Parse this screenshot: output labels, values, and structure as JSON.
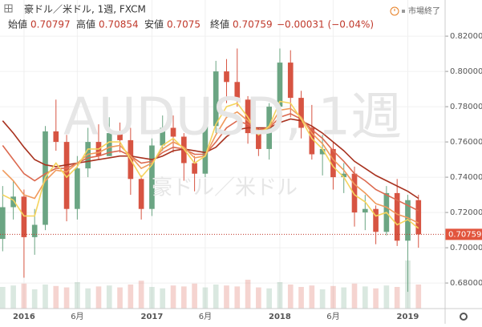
{
  "header": {
    "symbol": "豪ドル／米ドル, 1週, FXCM",
    "open_label": "始値",
    "open": 0.70797,
    "high_label": "高値",
    "high": 0.70854,
    "low_label": "安値",
    "low": 0.7075,
    "close_label": "終値",
    "close": 0.70759,
    "change": "−0.00031 (−0.04%)",
    "market_status": "市場終了"
  },
  "chart_data": {
    "type": "candlestick",
    "watermark": "AUDUSD, 1週",
    "watermark_sub": "豪ドル／米ドル",
    "xlim": [
      -0.25,
      41.5
    ],
    "xticks": [
      {
        "value": 2,
        "label": "2016"
      },
      {
        "value": 7,
        "label": "6月"
      },
      {
        "value": 14,
        "label": "2017"
      },
      {
        "value": 19,
        "label": "6月"
      },
      {
        "value": 26,
        "label": "2018"
      },
      {
        "value": 31,
        "label": "6月"
      },
      {
        "value": 38,
        "label": "2019"
      }
    ],
    "ylim": [
      0.6655,
      0.8405
    ],
    "yticks": [
      {
        "value": 0.68,
        "label": "0.68000"
      },
      {
        "value": 0.7,
        "label": "0.70000"
      },
      {
        "value": 0.72,
        "label": "0.72000"
      },
      {
        "value": 0.74,
        "label": "0.74000"
      },
      {
        "value": 0.76,
        "label": "0.76000"
      },
      {
        "value": 0.78,
        "label": "0.78000"
      },
      {
        "value": 0.8,
        "label": "0.80000"
      },
      {
        "value": 0.82,
        "label": "0.82000"
      }
    ],
    "up_color": "#6ba583",
    "down_color": "#d75442",
    "candles": [
      [
        0.705,
        0.735,
        0.698,
        0.723
      ],
      [
        0.723,
        0.738,
        0.716,
        0.729
      ],
      [
        0.729,
        0.733,
        0.683,
        0.706
      ],
      [
        0.706,
        0.722,
        0.696,
        0.713
      ],
      [
        0.713,
        0.769,
        0.71,
        0.766
      ],
      [
        0.766,
        0.784,
        0.755,
        0.76
      ],
      [
        0.76,
        0.764,
        0.715,
        0.722
      ],
      [
        0.722,
        0.752,
        0.716,
        0.745
      ],
      [
        0.745,
        0.768,
        0.74,
        0.76
      ],
      [
        0.76,
        0.77,
        0.75,
        0.752
      ],
      [
        0.752,
        0.774,
        0.752,
        0.765
      ],
      [
        0.765,
        0.771,
        0.754,
        0.761
      ],
      [
        0.761,
        0.768,
        0.73,
        0.739
      ],
      [
        0.739,
        0.741,
        0.716,
        0.722
      ],
      [
        0.722,
        0.762,
        0.718,
        0.758
      ],
      [
        0.758,
        0.775,
        0.755,
        0.768
      ],
      [
        0.768,
        0.775,
        0.754,
        0.763
      ],
      [
        0.763,
        0.765,
        0.738,
        0.748
      ],
      [
        0.748,
        0.752,
        0.732,
        0.742
      ],
      [
        0.742,
        0.77,
        0.74,
        0.769
      ],
      [
        0.769,
        0.806,
        0.765,
        0.8
      ],
      [
        0.8,
        0.807,
        0.782,
        0.794
      ],
      [
        0.794,
        0.813,
        0.78,
        0.784
      ],
      [
        0.784,
        0.786,
        0.759,
        0.765
      ],
      [
        0.765,
        0.768,
        0.752,
        0.756
      ],
      [
        0.756,
        0.782,
        0.75,
        0.78
      ],
      [
        0.78,
        0.813,
        0.779,
        0.805
      ],
      [
        0.805,
        0.812,
        0.774,
        0.785
      ],
      [
        0.785,
        0.789,
        0.762,
        0.768
      ],
      [
        0.768,
        0.781,
        0.75,
        0.753
      ],
      [
        0.753,
        0.764,
        0.741,
        0.756
      ],
      [
        0.756,
        0.76,
        0.733,
        0.74
      ],
      [
        0.74,
        0.748,
        0.731,
        0.742
      ],
      [
        0.742,
        0.746,
        0.712,
        0.72
      ],
      [
        0.72,
        0.73,
        0.71,
        0.722
      ],
      [
        0.722,
        0.724,
        0.702,
        0.709
      ],
      [
        0.709,
        0.735,
        0.707,
        0.731
      ],
      [
        0.731,
        0.739,
        0.701,
        0.704
      ],
      [
        0.704,
        0.73,
        0.675,
        0.727
      ],
      [
        0.727,
        0.73,
        0.7,
        0.7076
      ]
    ],
    "volume": [
      45,
      48,
      52,
      40,
      50,
      47,
      44,
      55,
      42,
      46,
      48,
      44,
      50,
      58,
      45,
      42,
      48,
      46,
      52,
      44,
      50,
      48,
      46,
      60,
      44,
      42,
      55,
      50,
      45,
      48,
      40,
      47,
      44,
      52,
      46,
      42,
      48,
      45,
      100,
      50
    ],
    "vlim": [
      0,
      100
    ],
    "series": [
      {
        "color": "#a8321f",
        "values": [
          0.772,
          0.765,
          0.757,
          0.75,
          0.747,
          0.746,
          0.747,
          0.748,
          0.749,
          0.75,
          0.751,
          0.752,
          0.752,
          0.751,
          0.75,
          0.752,
          0.755,
          0.756,
          0.755,
          0.754,
          0.757,
          0.763,
          0.767,
          0.768,
          0.768,
          0.768,
          0.771,
          0.773,
          0.772,
          0.769,
          0.765,
          0.76,
          0.755,
          0.749,
          0.745,
          0.741,
          0.738,
          0.735,
          0.732,
          0.728
        ]
      },
      {
        "color": "#dc6a50",
        "values": [
          0.758,
          0.75,
          0.742,
          0.738,
          0.742,
          0.745,
          0.745,
          0.748,
          0.751,
          0.752,
          0.754,
          0.755,
          0.752,
          0.748,
          0.749,
          0.754,
          0.757,
          0.756,
          0.753,
          0.753,
          0.76,
          0.768,
          0.772,
          0.77,
          0.767,
          0.768,
          0.774,
          0.776,
          0.773,
          0.767,
          0.762,
          0.755,
          0.749,
          0.742,
          0.738,
          0.733,
          0.73,
          0.727,
          0.724,
          0.721
        ]
      },
      {
        "color": "#f09a5c",
        "values": [
          0.744,
          0.738,
          0.73,
          0.728,
          0.738,
          0.744,
          0.743,
          0.748,
          0.753,
          0.754,
          0.757,
          0.758,
          0.752,
          0.745,
          0.748,
          0.756,
          0.76,
          0.757,
          0.751,
          0.752,
          0.764,
          0.774,
          0.777,
          0.772,
          0.766,
          0.768,
          0.778,
          0.779,
          0.774,
          0.765,
          0.759,
          0.75,
          0.744,
          0.736,
          0.731,
          0.725,
          0.723,
          0.719,
          0.717,
          0.714
        ]
      },
      {
        "color": "#f5d45e",
        "values": [
          0.73,
          0.727,
          0.718,
          0.718,
          0.74,
          0.748,
          0.74,
          0.746,
          0.756,
          0.756,
          0.76,
          0.76,
          0.75,
          0.74,
          0.747,
          0.758,
          0.762,
          0.756,
          0.748,
          0.752,
          0.77,
          0.78,
          0.782,
          0.774,
          0.764,
          0.769,
          0.783,
          0.782,
          0.773,
          0.762,
          0.756,
          0.746,
          0.74,
          0.73,
          0.726,
          0.718,
          0.72,
          0.713,
          0.716,
          0.711
        ]
      }
    ]
  }
}
